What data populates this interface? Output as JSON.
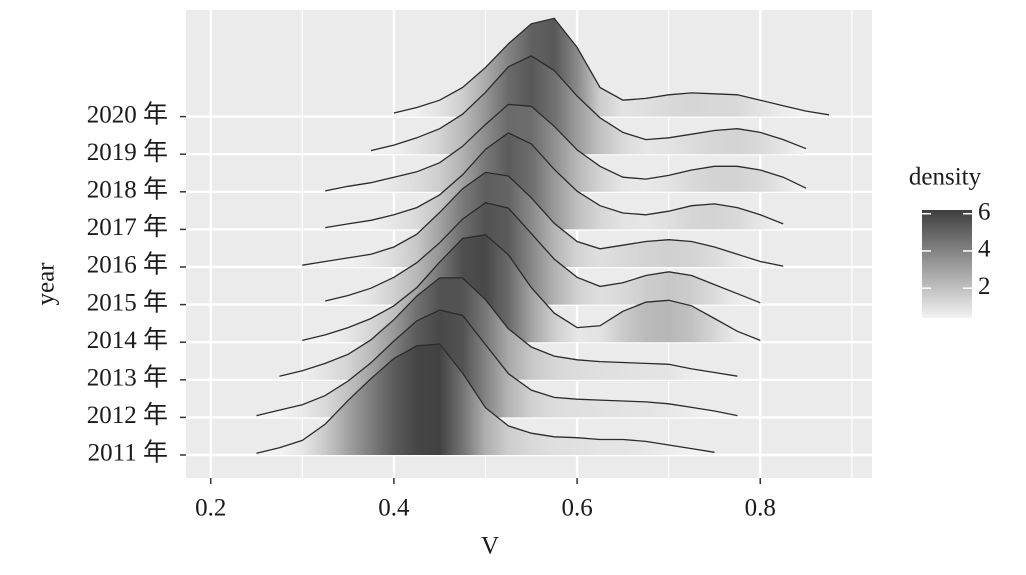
{
  "chart_data": {
    "type": "ridgeline",
    "x_label": "V",
    "y_label": "year",
    "legend_title": "density",
    "xlim": [
      0.173,
      0.922
    ],
    "xticks": [
      0.2,
      0.4,
      0.6,
      0.8
    ],
    "minor_xticks": [
      0.3,
      0.5,
      0.7,
      0.9
    ],
    "grid": true,
    "line_color": "#2b2b2b",
    "fill_low": "#f2f2f2",
    "fill_high": "#3f3f3f",
    "density_lim": [
      0.4,
      6.2
    ],
    "density_ticks": [
      2,
      4,
      6
    ],
    "x": [
      0.25,
      0.275,
      0.3,
      0.325,
      0.35,
      0.375,
      0.4,
      0.425,
      0.45,
      0.475,
      0.5,
      0.525,
      0.55,
      0.575,
      0.6,
      0.625,
      0.65,
      0.675,
      0.7,
      0.725,
      0.75,
      0.775,
      0.8,
      0.825,
      0.85,
      0.875
    ],
    "series": [
      {
        "name": "2011 年",
        "values": [
          0.1,
          0.4,
          0.8,
          1.7,
          3.0,
          4.2,
          5.3,
          6.0,
          6.1,
          4.5,
          2.6,
          1.6,
          1.2,
          1.0,
          0.95,
          0.85,
          0.85,
          0.75,
          0.55,
          0.35,
          0.15,
          null,
          null,
          null,
          null,
          null
        ]
      },
      {
        "name": "2012 年",
        "values": [
          0.1,
          0.4,
          0.7,
          1.2,
          2.0,
          3.0,
          4.2,
          5.3,
          5.9,
          5.6,
          4.0,
          2.4,
          1.5,
          1.1,
          1.0,
          0.95,
          0.9,
          0.85,
          0.75,
          0.55,
          0.35,
          0.1,
          null,
          null,
          null,
          null
        ]
      },
      {
        "name": "2013 年",
        "values": [
          null,
          0.2,
          0.5,
          0.9,
          1.4,
          2.2,
          3.3,
          4.6,
          5.6,
          5.6,
          4.4,
          2.8,
          1.8,
          1.3,
          1.1,
          1.0,
          0.95,
          0.9,
          0.85,
          0.6,
          0.4,
          0.2,
          null,
          null,
          null,
          null
        ]
      },
      {
        "name": "2014 年",
        "values": [
          null,
          null,
          0.1,
          0.4,
          0.8,
          1.3,
          2.0,
          3.0,
          4.4,
          5.7,
          5.9,
          4.8,
          3.0,
          1.6,
          0.8,
          0.9,
          1.7,
          2.2,
          2.3,
          2.0,
          1.3,
          0.6,
          0.1,
          null,
          null,
          null
        ]
      },
      {
        "name": "2015 年",
        "values": [
          null,
          null,
          null,
          0.2,
          0.5,
          0.9,
          1.5,
          2.3,
          3.4,
          4.7,
          5.6,
          5.3,
          3.9,
          2.5,
          1.5,
          1.0,
          1.2,
          1.6,
          1.8,
          1.6,
          1.1,
          0.6,
          0.1,
          null,
          null,
          null
        ]
      },
      {
        "name": "2016 年",
        "values": [
          null,
          null,
          0.1,
          0.3,
          0.5,
          0.7,
          1.1,
          1.8,
          3.0,
          4.3,
          5.2,
          5.0,
          3.8,
          2.4,
          1.4,
          1.0,
          1.2,
          1.4,
          1.5,
          1.4,
          1.1,
          0.7,
          0.3,
          0.05,
          null,
          null
        ]
      },
      {
        "name": "2017 年",
        "values": [
          null,
          null,
          null,
          0.1,
          0.3,
          0.5,
          0.8,
          1.2,
          1.9,
          3.0,
          4.4,
          5.3,
          4.7,
          3.3,
          2.1,
          1.3,
          0.9,
          0.8,
          1.0,
          1.3,
          1.4,
          1.2,
          0.8,
          0.3,
          null,
          null
        ]
      },
      {
        "name": "2018 年",
        "values": [
          null,
          null,
          null,
          0.05,
          0.3,
          0.5,
          0.8,
          1.1,
          1.6,
          2.5,
          3.7,
          4.8,
          4.7,
          3.6,
          2.3,
          1.4,
          0.8,
          0.7,
          0.9,
          1.2,
          1.4,
          1.4,
          1.2,
          0.8,
          0.2,
          null
        ]
      },
      {
        "name": "2019 年",
        "values": [
          null,
          null,
          null,
          null,
          null,
          0.2,
          0.5,
          0.9,
          1.4,
          2.2,
          3.4,
          4.8,
          5.4,
          4.6,
          3.2,
          2.0,
          1.2,
          0.8,
          0.9,
          1.1,
          1.3,
          1.4,
          1.2,
          0.8,
          0.3,
          null
        ]
      },
      {
        "name": "2020 年",
        "values": [
          null,
          null,
          null,
          null,
          null,
          null,
          0.2,
          0.5,
          0.9,
          1.6,
          2.7,
          4.0,
          5.1,
          5.4,
          3.8,
          1.6,
          0.9,
          1.0,
          1.2,
          1.3,
          1.25,
          1.2,
          0.9,
          0.6,
          0.3,
          0.1
        ]
      }
    ]
  }
}
